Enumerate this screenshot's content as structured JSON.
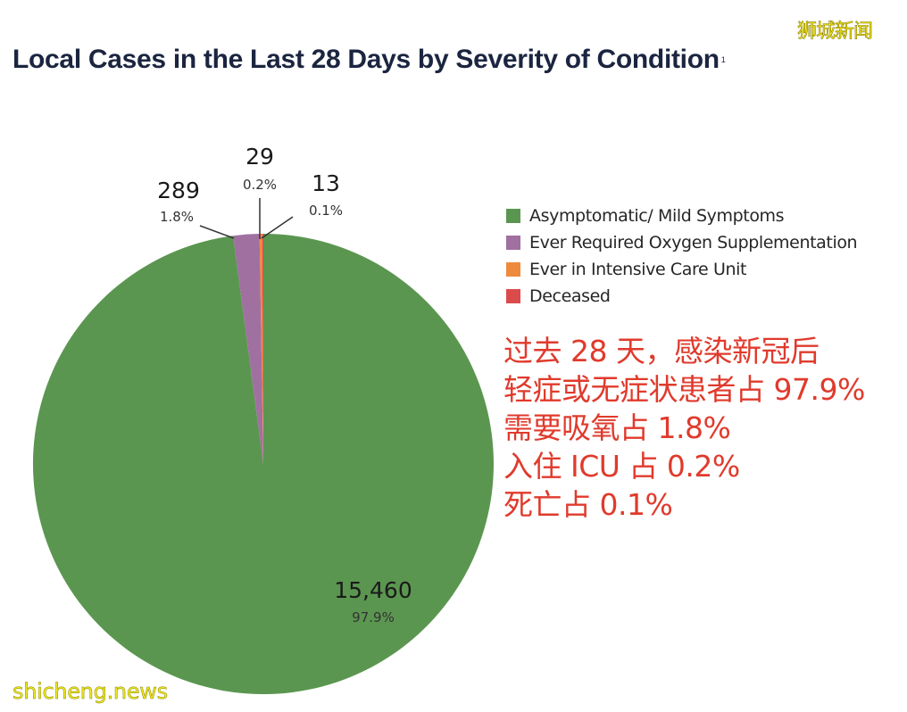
{
  "header": {
    "title": "Local Cases in the Last 28 Days by Severity of Condition",
    "title_footnote": "1"
  },
  "watermarks": {
    "top_right": "狮城新闻",
    "bottom_left": "shicheng.news"
  },
  "labels": {
    "asymptomatic": {
      "count": "15,460",
      "pct": "97.9%"
    },
    "oxygen": {
      "count": "289",
      "pct": "1.8%"
    },
    "icu": {
      "count": "29",
      "pct": "0.2%"
    },
    "deceased": {
      "count": "13",
      "pct": "0.1%"
    }
  },
  "legend": [
    {
      "label": "Asymptomatic/ Mild Symptoms",
      "color": "#5b9650"
    },
    {
      "label": "Ever Required Oxygen Supplementation",
      "color": "#a070a0"
    },
    {
      "label": "Ever in Intensive Care Unit",
      "color": "#ee8a3c"
    },
    {
      "label": "Deceased",
      "color": "#dc4b4b"
    }
  ],
  "annotation": {
    "lines": [
      "过去 28 天，感染新冠后",
      "轻症或无症状患者占 97.9%",
      "需要吸氧占 1.8%",
      "入住 ICU 占 0.2%",
      "死亡占 0.1%"
    ],
    "color": "#e03a2c"
  },
  "chart_data": {
    "type": "pie",
    "title": "Local Cases in the Last 28 Days by Severity of Condition",
    "categories": [
      "Asymptomatic/ Mild Symptoms",
      "Ever Required Oxygen Supplementation",
      "Ever in Intensive Care Unit",
      "Deceased"
    ],
    "values": [
      15460,
      289,
      29,
      13
    ],
    "percentages": [
      97.9,
      1.8,
      0.2,
      0.1
    ],
    "colors": [
      "#5b9650",
      "#a070a0",
      "#ee8a3c",
      "#dc4b4b"
    ],
    "legend_position": "right"
  }
}
